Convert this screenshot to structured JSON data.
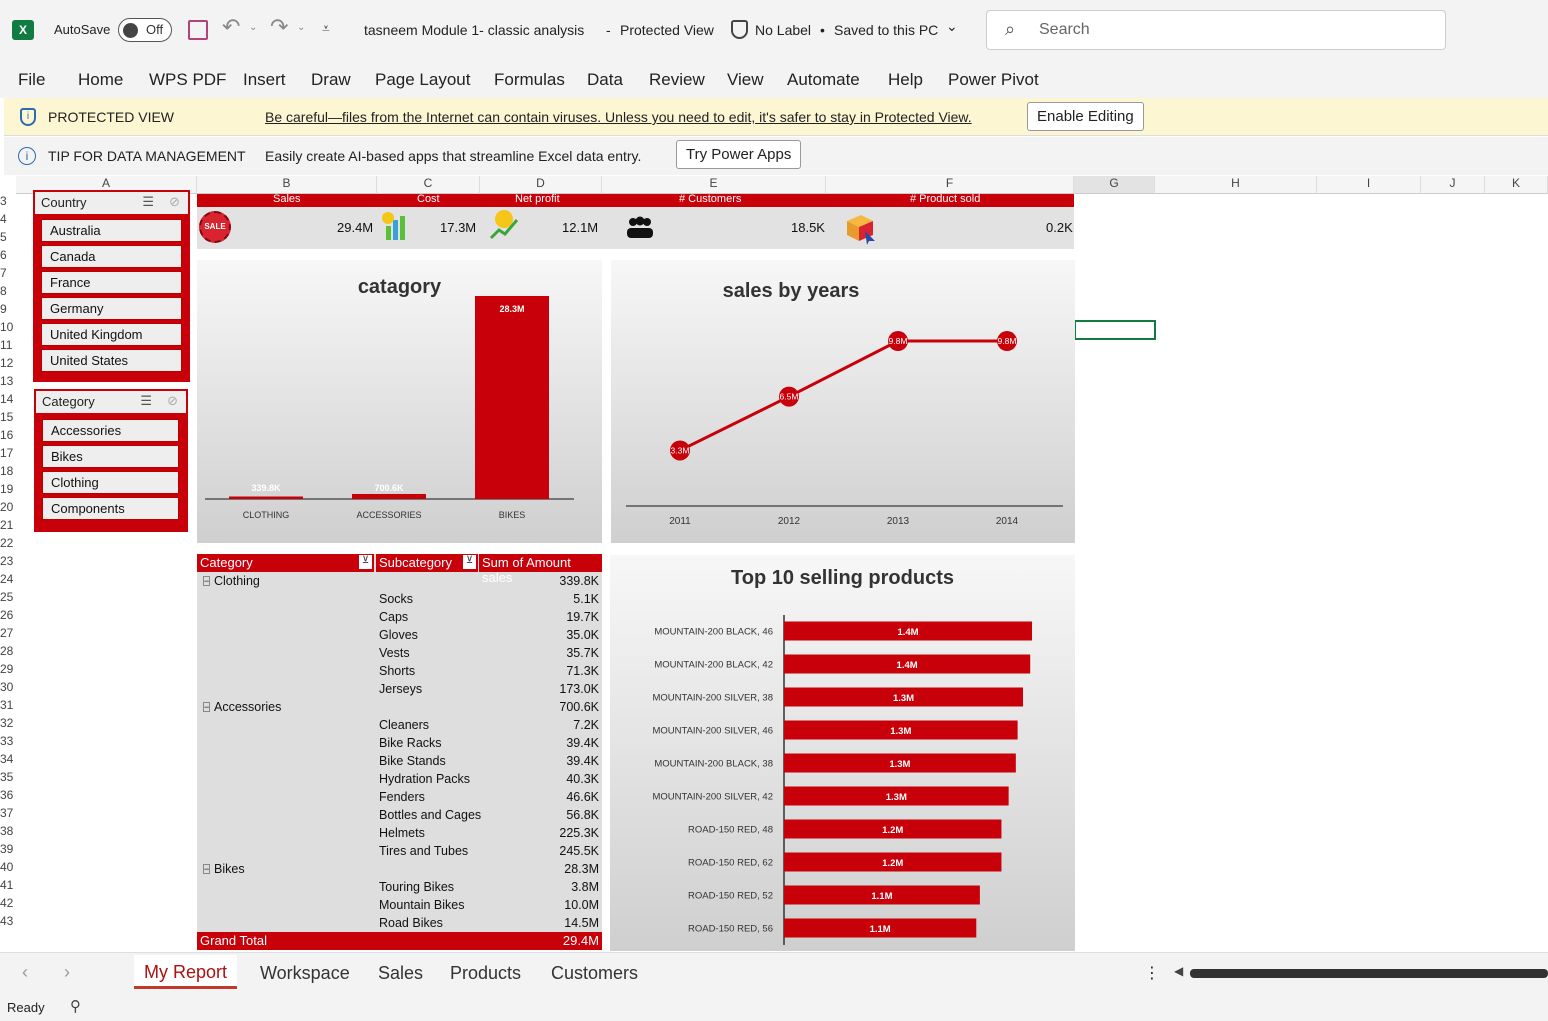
{
  "titlebar": {
    "autosave_label": "AutoSave",
    "toggle_label": "Off",
    "file_title": "tasneem Module 1- classic analysis",
    "separator": "-",
    "view_mode": "Protected View",
    "label_status": "No Label",
    "saved_status": "Saved to this PC",
    "search_placeholder": "Search"
  },
  "menu": [
    "File",
    "Home",
    "WPS PDF",
    "Insert",
    "Draw",
    "Page Layout",
    "Formulas",
    "Data",
    "Review",
    "View",
    "Automate",
    "Help",
    "Power Pivot"
  ],
  "protected_bar": {
    "title": "PROTECTED VIEW",
    "message": "Be careful—files from the Internet can contain viruses. Unless you need to edit, it's safer to stay in Protected View.",
    "button": "Enable Editing"
  },
  "tip_bar": {
    "title": "TIP FOR DATA MANAGEMENT",
    "message": "Easily create AI-based apps that streamline Excel data entry.",
    "button": "Try Power Apps"
  },
  "columns": [
    "A",
    "B",
    "C",
    "D",
    "E",
    "F",
    "G",
    "H",
    "I",
    "J",
    "K"
  ],
  "rows": [
    "3",
    "4",
    "5",
    "6",
    "7",
    "8",
    "9",
    "10",
    "11",
    "12",
    "13",
    "14",
    "15",
    "16",
    "17",
    "18",
    "19",
    "20",
    "21",
    "22",
    "23",
    "24",
    "25",
    "26",
    "27",
    "28",
    "29",
    "30",
    "31",
    "32",
    "33",
    "34",
    "35",
    "36",
    "37",
    "38",
    "39",
    "40",
    "41",
    "42",
    "43"
  ],
  "country_slicer": {
    "title": "Country",
    "items": [
      "Australia",
      "Canada",
      "France",
      "Germany",
      "United Kingdom",
      "United States"
    ]
  },
  "category_slicer": {
    "title": "Category",
    "items": [
      "Accessories",
      "Bikes",
      "Clothing",
      "Components"
    ]
  },
  "kpis": {
    "labels": [
      "Sales",
      "Cost",
      "Net profit",
      "# Customers",
      "# Product sold"
    ],
    "values": [
      "29.4M",
      "17.3M",
      "12.1M",
      "18.5K",
      "0.2K"
    ],
    "sale_badge": "SALE"
  },
  "chart_data": [
    {
      "type": "bar",
      "title": "catagory",
      "categories": [
        "CLOTHING",
        "ACCESSORIES",
        "BIKES"
      ],
      "values": [
        339.8,
        700.6,
        28300
      ],
      "labels": [
        "339.8K",
        "700.6K",
        "28.3M"
      ],
      "bar_color": "#c8000a"
    },
    {
      "type": "line",
      "title": "sales by years",
      "categories": [
        "2011",
        "2012",
        "2013",
        "2014"
      ],
      "values": [
        3.3,
        6.5,
        9.8,
        9.8
      ],
      "labels": [
        "3.3M",
        "6.5M",
        "9.8M",
        "9.8M"
      ],
      "line_color": "#c8000a"
    },
    {
      "type": "bar",
      "orientation": "horizontal",
      "title": "Top 10 selling products",
      "categories": [
        "MOUNTAIN-200 BLACK, 46",
        "MOUNTAIN-200 BLACK, 42",
        "MOUNTAIN-200 SILVER, 38",
        "MOUNTAIN-200 SILVER, 46",
        "MOUNTAIN-200 BLACK, 38",
        "MOUNTAIN-200 SILVER, 42",
        "ROAD-150 RED, 48",
        "ROAD-150 RED, 62",
        "ROAD-150 RED, 52",
        "ROAD-150 RED, 56"
      ],
      "values": [
        1.38,
        1.37,
        1.33,
        1.3,
        1.29,
        1.25,
        1.21,
        1.21,
        1.09,
        1.07
      ],
      "labels": [
        "1.4M",
        "1.4M",
        "1.3M",
        "1.3M",
        "1.3M",
        "1.3M",
        "1.2M",
        "1.2M",
        "1.1M",
        "1.1M"
      ],
      "bar_color": "#c8000a"
    }
  ],
  "pivot": {
    "headers": [
      "Category",
      "Subcategory",
      "Sum of Amount sales"
    ],
    "rows": [
      {
        "category": "Clothing",
        "subcategory": "",
        "value": "339.8K"
      },
      {
        "category": "",
        "subcategory": "Socks",
        "value": "5.1K"
      },
      {
        "category": "",
        "subcategory": "Caps",
        "value": "19.7K"
      },
      {
        "category": "",
        "subcategory": "Gloves",
        "value": "35.0K"
      },
      {
        "category": "",
        "subcategory": "Vests",
        "value": "35.7K"
      },
      {
        "category": "",
        "subcategory": "Shorts",
        "value": "71.3K"
      },
      {
        "category": "",
        "subcategory": "Jerseys",
        "value": "173.0K"
      },
      {
        "category": "Accessories",
        "subcategory": "",
        "value": "700.6K"
      },
      {
        "category": "",
        "subcategory": "Cleaners",
        "value": "7.2K"
      },
      {
        "category": "",
        "subcategory": "Bike Racks",
        "value": "39.4K"
      },
      {
        "category": "",
        "subcategory": "Bike Stands",
        "value": "39.4K"
      },
      {
        "category": "",
        "subcategory": "Hydration Packs",
        "value": "40.3K"
      },
      {
        "category": "",
        "subcategory": "Fenders",
        "value": "46.6K"
      },
      {
        "category": "",
        "subcategory": "Bottles and Cages",
        "value": "56.8K"
      },
      {
        "category": "",
        "subcategory": "Helmets",
        "value": "225.3K"
      },
      {
        "category": "",
        "subcategory": "Tires and Tubes",
        "value": "245.5K"
      },
      {
        "category": "Bikes",
        "subcategory": "",
        "value": "28.3M"
      },
      {
        "category": "",
        "subcategory": "Touring Bikes",
        "value": "3.8M"
      },
      {
        "category": "",
        "subcategory": "Mountain Bikes",
        "value": "10.0M"
      },
      {
        "category": "",
        "subcategory": "Road Bikes",
        "value": "14.5M"
      }
    ],
    "grand_total_label": "Grand Total",
    "grand_total_value": "29.4M"
  },
  "sheet_tabs": [
    "My Report",
    "Workspace",
    "Sales",
    "Products",
    "Customers"
  ],
  "active_tab": "My Report",
  "status": {
    "ready": "Ready"
  },
  "colors": {
    "accent": "#c8000a",
    "excel_green": "#107c41"
  }
}
